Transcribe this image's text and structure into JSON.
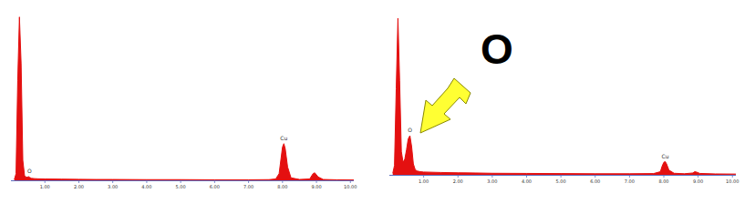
{
  "chart_data": [
    {
      "type": "area",
      "color": "#e41010",
      "xlim": [
        0,
        10.1
      ],
      "ylim": [
        0,
        1000
      ],
      "tick_labels": "x",
      "grid": false,
      "xticks": [
        {
          "value": 1,
          "label": "1.00"
        },
        {
          "value": 2,
          "label": "2.00"
        },
        {
          "value": 3,
          "label": "3.00"
        },
        {
          "value": 4,
          "label": "4.00"
        },
        {
          "value": 5,
          "label": "5.00"
        },
        {
          "value": 6,
          "label": "6.00"
        },
        {
          "value": 7,
          "label": "7.00"
        },
        {
          "value": 8,
          "label": "8.00"
        },
        {
          "value": 9,
          "label": "9.00"
        },
        {
          "value": 10,
          "label": "10.00"
        }
      ],
      "x": [
        0.1,
        0.15,
        0.2,
        0.25,
        0.3,
        0.35,
        0.4,
        0.45,
        0.5,
        0.52,
        0.55,
        0.6,
        0.7,
        0.8,
        1.0,
        1.5,
        2.0,
        2.5,
        3.0,
        4.0,
        5.0,
        6.0,
        7.0,
        7.6,
        7.8,
        7.9,
        7.95,
        8.0,
        8.04,
        8.08,
        8.15,
        8.25,
        8.5,
        8.8,
        8.9,
        8.95,
        9.05,
        9.2,
        9.6,
        10.1
      ],
      "values": [
        5,
        40,
        600,
        980,
        700,
        120,
        30,
        18,
        20,
        22,
        18,
        12,
        10,
        9,
        8,
        7,
        6,
        5,
        5,
        4,
        4,
        3,
        3,
        4,
        8,
        40,
        120,
        200,
        220,
        190,
        80,
        15,
        5,
        8,
        40,
        45,
        20,
        5,
        3,
        2
      ],
      "annotations": [
        {
          "text": "O",
          "x": 0.55,
          "y": 45
        },
        {
          "text": "Cu",
          "x": 8.04,
          "y": 240
        }
      ]
    },
    {
      "type": "area",
      "title": "O",
      "color": "#e41010",
      "xlim": [
        0,
        10.1
      ],
      "ylim": [
        0,
        1000
      ],
      "tick_labels": "x",
      "grid": false,
      "xticks": [
        {
          "value": 1,
          "label": "1.00"
        },
        {
          "value": 2,
          "label": "2.00"
        },
        {
          "value": 3,
          "label": "3.00"
        },
        {
          "value": 4,
          "label": "4.00"
        },
        {
          "value": 5,
          "label": "5.00"
        },
        {
          "value": 6,
          "label": "6.00"
        },
        {
          "value": 7,
          "label": "7.00"
        },
        {
          "value": 8,
          "label": "8.00"
        },
        {
          "value": 9,
          "label": "9.00"
        },
        {
          "value": 10,
          "label": "10.00"
        }
      ],
      "x": [
        0.1,
        0.15,
        0.2,
        0.25,
        0.3,
        0.35,
        0.4,
        0.45,
        0.5,
        0.55,
        0.6,
        0.65,
        0.7,
        0.75,
        0.8,
        0.9,
        1.0,
        1.5,
        2.0,
        2.5,
        3.0,
        4.0,
        5.0,
        6.0,
        7.0,
        7.7,
        7.9,
        7.95,
        8.0,
        8.04,
        8.08,
        8.15,
        8.3,
        8.6,
        8.85,
        8.9,
        8.95,
        9.05,
        9.5,
        10.1
      ],
      "values": [
        10,
        60,
        550,
        1000,
        600,
        150,
        80,
        100,
        160,
        230,
        250,
        180,
        70,
        35,
        25,
        20,
        18,
        15,
        13,
        12,
        10,
        9,
        8,
        7,
        7,
        8,
        20,
        55,
        80,
        85,
        70,
        30,
        10,
        7,
        12,
        20,
        18,
        9,
        6,
        5
      ],
      "annotations": [
        {
          "text": "O",
          "x": 0.6,
          "y": 275
        },
        {
          "text": "Cu",
          "x": 8.04,
          "y": 105
        }
      ]
    }
  ]
}
